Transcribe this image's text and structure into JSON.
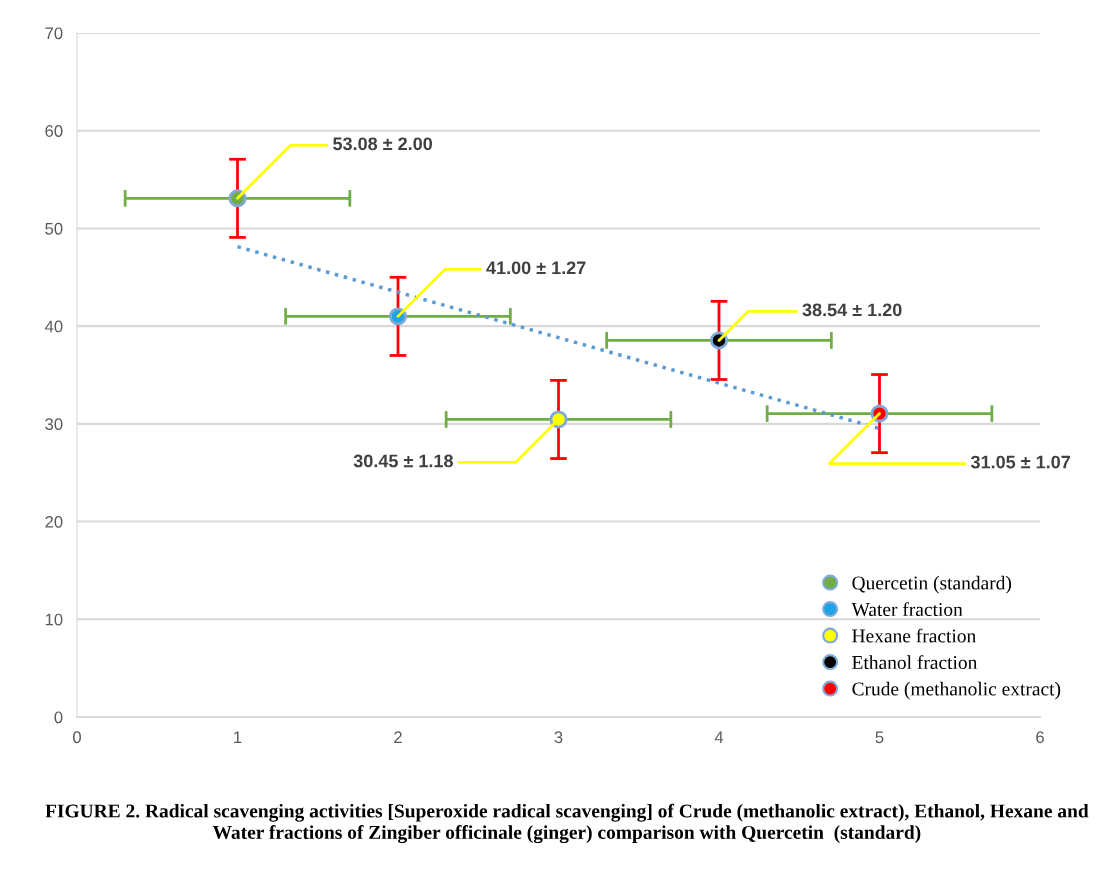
{
  "chart_data": {
    "type": "scatter",
    "series": [
      {
        "name": "Quercetin (standard)",
        "color": "#70ad47",
        "x": [
          1
        ],
        "values": [
          53.08
        ],
        "errors": [
          4
        ],
        "xerrors": [
          0.7
        ]
      },
      {
        "name": "Water fraction",
        "color": "#1fa2e6",
        "x": [
          2
        ],
        "values": [
          41.0
        ],
        "errors": [
          4
        ],
        "xerrors": [
          0.7
        ]
      },
      {
        "name": "Hexane fraction",
        "color": "#ffff00",
        "x": [
          3
        ],
        "values": [
          30.45
        ],
        "errors": [
          4
        ],
        "xerrors": [
          0.7
        ]
      },
      {
        "name": "Ethanol fraction",
        "color": "#000000",
        "x": [
          4
        ],
        "values": [
          38.54
        ],
        "errors": [
          4
        ],
        "xerrors": [
          0.7
        ]
      },
      {
        "name": "Crude (methanolic extract)",
        "color": "#ff0000",
        "x": [
          5
        ],
        "values": [
          31.05
        ],
        "errors": [
          4
        ],
        "xerrors": [
          0.7
        ]
      },
      {
        "type": "line",
        "color": "#5b9bd5",
        "x": [
          1,
          5
        ],
        "values": [
          48.13,
          29.52
        ],
        "line_style": "dotted",
        "marker": "none"
      }
    ],
    "annotations": [
      {
        "text": "53.08 ± 2.00",
        "x": 1,
        "y": 53.08
      },
      {
        "text": "41.00 ± 1.27",
        "x": 2,
        "y": 41.0
      },
      {
        "text": "30.45 ± 1.18",
        "x": 3,
        "y": 30.45
      },
      {
        "text": "38.54 ± 1.20",
        "x": 4,
        "y": 38.54
      },
      {
        "text": "31.05 ± 1.07",
        "x": 5,
        "y": 31.05
      },
      "FIGURE 2. Radical scavenging activities [Superoxide radical scavenging] of Crude (methanolic extract), Ethanol, Hexane and Water fractions of Zingiber officinale (ginger) comparison with Quercetin  (standard)"
    ],
    "xlim": [
      0,
      6
    ],
    "xticks": [
      0,
      1,
      2,
      3,
      4,
      5,
      6
    ],
    "ylim": [
      0,
      70
    ],
    "yticks": [
      0,
      10,
      20,
      30,
      40,
      50,
      60,
      70
    ],
    "grid": "y",
    "legend": "bottom right",
    "marker": "circle"
  }
}
